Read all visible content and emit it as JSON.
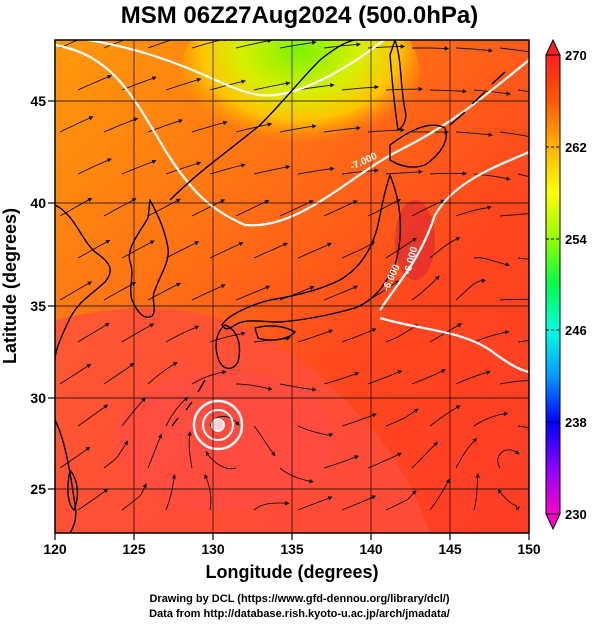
{
  "title": "MSM 06Z27Aug2024 (500.0hPa)",
  "x_axis": {
    "label": "Longitude (degrees)",
    "ticks": [
      "120",
      "125",
      "130",
      "135",
      "140",
      "145",
      "150"
    ],
    "range": [
      120,
      150
    ]
  },
  "y_axis": {
    "label": "Latitude  (degrees)",
    "ticks": [
      "25",
      "30",
      "35",
      "40",
      "45"
    ],
    "range": [
      22.5,
      47.6
    ]
  },
  "colorbar": {
    "ticks": [
      "230",
      "238",
      "246",
      "254",
      "262",
      "270"
    ],
    "range": [
      230,
      270
    ],
    "colors": [
      "#ff00c8",
      "#8c00ff",
      "#0000ff",
      "#009bff",
      "#00ffe6",
      "#00ff4b",
      "#96ff00",
      "#ffff00",
      "#ffb400",
      "#ff5a00",
      "#ff1e1e"
    ]
  },
  "contour_labels": [
    "-7.000",
    "-6.000",
    "-6.000"
  ],
  "credits": [
    "Drawing by DCL (https://www.gfd-dennou.org/library/dcl/)",
    "Data from http://database.rish.kyoto-u.ac.jp/arch/jmadata/"
  ]
}
